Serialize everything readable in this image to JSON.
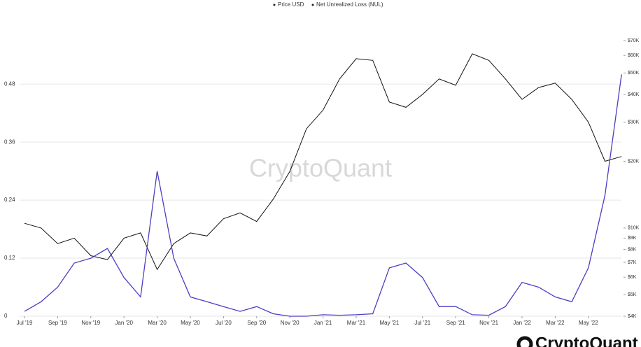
{
  "chart_data": {
    "type": "line",
    "legend": [
      "Price USD",
      "Net Unrealized Loss (NUL)"
    ],
    "watermark": "CryptoQuant",
    "logo": "CryptoQuant",
    "x": [
      "2019-07",
      "2019-08",
      "2019-09",
      "2019-10",
      "2019-11",
      "2019-12",
      "2020-01",
      "2020-02",
      "2020-03",
      "2020-04",
      "2020-05",
      "2020-06",
      "2020-07",
      "2020-08",
      "2020-09",
      "2020-10",
      "2020-11",
      "2020-12",
      "2021-01",
      "2021-02",
      "2021-03",
      "2021-04",
      "2021-05",
      "2021-06",
      "2021-07",
      "2021-08",
      "2021-09",
      "2021-10",
      "2021-11",
      "2021-12",
      "2022-01",
      "2022-02",
      "2022-03",
      "2022-04",
      "2022-05",
      "2022-06",
      "2022-07"
    ],
    "xticks": [
      {
        "value": "2019-07",
        "label": "Jul '19"
      },
      {
        "value": "2019-09",
        "label": "Sep '19"
      },
      {
        "value": "2019-11",
        "label": "Nov '19"
      },
      {
        "value": "2020-01",
        "label": "Jan '20"
      },
      {
        "value": "2020-03",
        "label": "Mar '20"
      },
      {
        "value": "2020-05",
        "label": "May '20"
      },
      {
        "value": "2020-07",
        "label": "Jul '20"
      },
      {
        "value": "2020-09",
        "label": "Sep '20"
      },
      {
        "value": "2020-11",
        "label": "Nov '20"
      },
      {
        "value": "2021-01",
        "label": "Jan '21"
      },
      {
        "value": "2021-03",
        "label": "Mar '21"
      },
      {
        "value": "2021-05",
        "label": "May '21"
      },
      {
        "value": "2021-07",
        "label": "Jul '21"
      },
      {
        "value": "2021-09",
        "label": "Sep '21"
      },
      {
        "value": "2021-11",
        "label": "Nov '21"
      },
      {
        "value": "2022-01",
        "label": "Jan '22"
      },
      {
        "value": "2022-03",
        "label": "Mar '22"
      },
      {
        "value": "2022-05",
        "label": "May '22"
      }
    ],
    "series": [
      {
        "name": "Price USD",
        "color": "#111111",
        "axis": "y2",
        "values": [
          10500,
          10000,
          8500,
          9000,
          7500,
          7200,
          9000,
          9500,
          6500,
          8500,
          9500,
          9200,
          11000,
          11700,
          10700,
          13500,
          18000,
          28000,
          34000,
          47000,
          58000,
          57000,
          37000,
          35000,
          40000,
          47000,
          44000,
          61000,
          57000,
          47000,
          38000,
          43000,
          45000,
          38000,
          30000,
          20000,
          21000
        ]
      },
      {
        "name": "Net Unrealized Loss (NUL)",
        "color": "#4a3fc4",
        "values": [
          0.01,
          0.03,
          0.06,
          0.11,
          0.12,
          0.14,
          0.08,
          0.04,
          0.3,
          0.12,
          0.04,
          0.03,
          0.02,
          0.01,
          0.02,
          0.005,
          0,
          0,
          0.003,
          0.002,
          0.003,
          0.005,
          0.1,
          0.11,
          0.08,
          0.02,
          0.02,
          0.003,
          0.002,
          0.02,
          0.07,
          0.06,
          0.04,
          0.03,
          0.1,
          0.25,
          0.5
        ]
      }
    ],
    "ylim": [
      0,
      0.57
    ],
    "yticks": [
      0,
      0.12,
      0.24,
      0.36,
      0.48
    ],
    "y2lim": [
      4000,
      70000
    ],
    "y2_log": true,
    "y2ticks": [
      {
        "value": 70000,
        "label": "$70K"
      },
      {
        "value": 60000,
        "label": "$60K"
      },
      {
        "value": 50000,
        "label": "$50K"
      },
      {
        "value": 40000,
        "label": "$40K"
      },
      {
        "value": 30000,
        "label": "$30K"
      },
      {
        "value": 20000,
        "label": "$20K"
      },
      {
        "value": 10000,
        "label": "$10K"
      },
      {
        "value": 9000,
        "label": "$9K"
      },
      {
        "value": 8000,
        "label": "$8K"
      },
      {
        "value": 7000,
        "label": "$7K"
      },
      {
        "value": 6000,
        "label": "$6K"
      },
      {
        "value": 5000,
        "label": "$5K"
      },
      {
        "value": 4000,
        "label": "$4K"
      }
    ],
    "grid": true
  }
}
